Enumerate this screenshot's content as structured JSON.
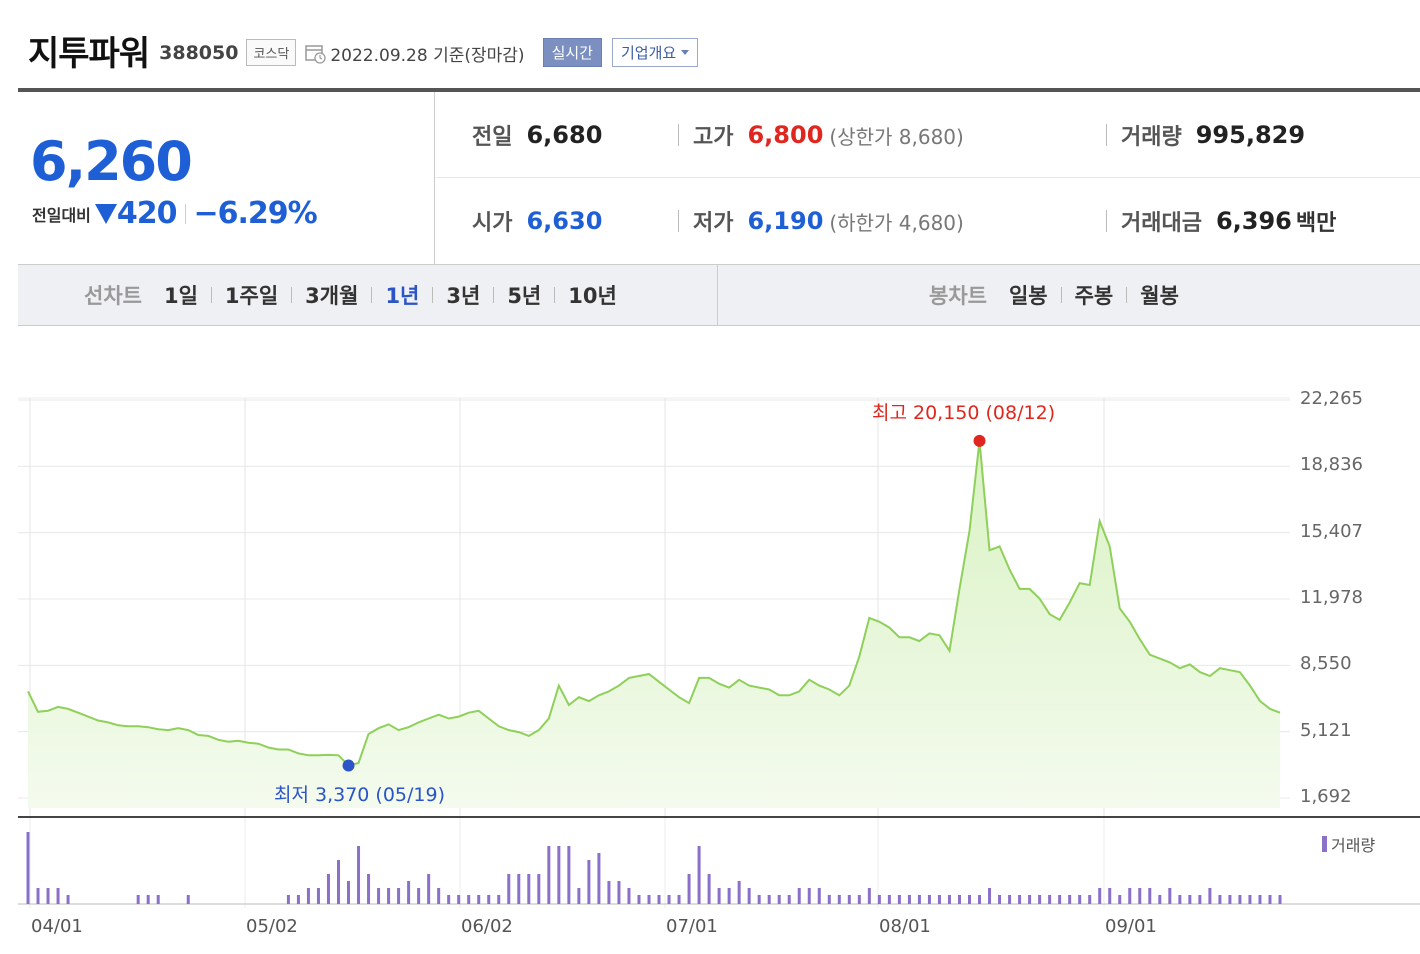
{
  "header": {
    "name": "지투파워",
    "code": "388050",
    "market": "코스닥",
    "date": "2022.09.28 기준(장마감)",
    "realtime_label": "실시간",
    "company_label": "기업개요"
  },
  "quote": {
    "price": "6,260",
    "change_label": "전일대비",
    "change_amount": "420",
    "change_pct": "−6.29%",
    "prev_label": "전일",
    "prev": "6,680",
    "high_label": "고가",
    "high": "6,800",
    "upper_limit": "(상한가 8,680)",
    "volume_label": "거래량",
    "volume": "995,829",
    "open_label": "시가",
    "open": "6,630",
    "low_label": "저가",
    "low": "6,190",
    "lower_limit": "(하한가 4,680)",
    "value_label": "거래대금",
    "value": "6,396",
    "value_unit": "백만"
  },
  "tabs": {
    "line_title": "선차트",
    "line": [
      "1일",
      "1주일",
      "3개월",
      "1년",
      "3년",
      "5년",
      "10년"
    ],
    "active": "1년",
    "candle_title": "봉차트",
    "candle": [
      "일봉",
      "주봉",
      "월봉"
    ]
  },
  "chart_data": {
    "type": "area",
    "y_ticks": [
      "22,265",
      "18,836",
      "15,407",
      "11,978",
      "8,550",
      "5,121",
      "1,692"
    ],
    "ylim": [
      1692,
      22265
    ],
    "x_ticks": [
      "04/01",
      "05/02",
      "06/02",
      "07/01",
      "08/01",
      "09/01"
    ],
    "max_annotation": "최고 20,150 (08/12)",
    "min_annotation": "최저 3,370 (05/19)",
    "volume_legend": "거래량",
    "colors": {
      "line": "#8ed05a",
      "fill_top": "#d9f2c3",
      "fill_bottom": "#f4fbee",
      "volume": "#8a70c8",
      "max": "#e0271f",
      "min": "#2a54c8"
    },
    "prices": [
      7200,
      6150,
      6200,
      6400,
      6300,
      6100,
      5900,
      5700,
      5600,
      5450,
      5400,
      5400,
      5350,
      5250,
      5200,
      5300,
      5200,
      4950,
      4900,
      4700,
      4600,
      4650,
      4550,
      4500,
      4300,
      4200,
      4200,
      4000,
      3900,
      3900,
      3920,
      3900,
      3370,
      3500,
      5000,
      5300,
      5500,
      5200,
      5350,
      5600,
      5800,
      6000,
      5800,
      5900,
      6100,
      6200,
      5800,
      5400,
      5200,
      5100,
      4900,
      5200,
      5800,
      7500,
      6500,
      6900,
      6700,
      7000,
      7200,
      7500,
      7900,
      8000,
      8100,
      7700,
      7300,
      6900,
      6600,
      7900,
      7900,
      7600,
      7400,
      7800,
      7500,
      7400,
      7300,
      7000,
      7000,
      7200,
      7800,
      7500,
      7300,
      7000,
      7500,
      9000,
      11000,
      10800,
      10500,
      10000,
      10000,
      9800,
      10200,
      10100,
      9300,
      12500,
      15500,
      20150,
      14500,
      14700,
      13500,
      12500,
      12500,
      12000,
      11200,
      10900,
      11800,
      12800,
      12700,
      16000,
      14700,
      11500,
      10800,
      9900,
      9100,
      8900,
      8700,
      8400,
      8600,
      8200,
      8000,
      8400,
      8300,
      8200,
      7500,
      6700,
      6300,
      6100
    ],
    "volumes": [
      10,
      2,
      2,
      2,
      1,
      0,
      0,
      0,
      0,
      0,
      0,
      1,
      1,
      1,
      0,
      0,
      1,
      0,
      0,
      0,
      0,
      0,
      0,
      0,
      0,
      0,
      1,
      1,
      2,
      2,
      4,
      6,
      3,
      8,
      4,
      2,
      2,
      2,
      3,
      2,
      4,
      2,
      1,
      1,
      1,
      1,
      1,
      1,
      4,
      4,
      4,
      4,
      8,
      8,
      8,
      2,
      6,
      7,
      3,
      3,
      2,
      1,
      1,
      1,
      1,
      1,
      4,
      8,
      4,
      2,
      2,
      3,
      2,
      1,
      1,
      1,
      1,
      2,
      2,
      2,
      1,
      1,
      1,
      1,
      2,
      1,
      1,
      1,
      1,
      1,
      1,
      1,
      1,
      1,
      1,
      1,
      2,
      1,
      1,
      1,
      1,
      1,
      1,
      1,
      1,
      1,
      1,
      2,
      2,
      1,
      2,
      2,
      2,
      1,
      2,
      1,
      1,
      1,
      2,
      1,
      1,
      1,
      1,
      1,
      1,
      1
    ],
    "volume_bars": [
      [
        27,
        52
      ],
      [
        36,
        14
      ],
      [
        44,
        18
      ],
      [
        52,
        14
      ],
      [
        60,
        18
      ],
      [
        68,
        10
      ],
      [
        76,
        4
      ],
      [
        84,
        4
      ],
      [
        92,
        4
      ],
      [
        100,
        4
      ],
      [
        108,
        4
      ],
      [
        116,
        4
      ],
      [
        124,
        4
      ],
      [
        148,
        4
      ],
      [
        156,
        4
      ],
      [
        164,
        4
      ],
      [
        172,
        10
      ],
      [
        244,
        8
      ],
      [
        252,
        4
      ],
      [
        260,
        4
      ],
      [
        276,
        4
      ],
      [
        284,
        4
      ],
      [
        300,
        4
      ],
      [
        308,
        4
      ],
      [
        316,
        4
      ],
      [
        340,
        4
      ],
      [
        348,
        4
      ],
      [
        356,
        4
      ],
      [
        364,
        10
      ],
      [
        372,
        25
      ],
      [
        380,
        18
      ],
      [
        386,
        52
      ],
      [
        394,
        12
      ],
      [
        402,
        16
      ],
      [
        410,
        20
      ],
      [
        418,
        18
      ],
      [
        426,
        16
      ],
      [
        434,
        20
      ],
      [
        442,
        10
      ],
      [
        450,
        4
      ],
      [
        458,
        4
      ],
      [
        466,
        20
      ],
      [
        474,
        4
      ],
      [
        482,
        8
      ],
      [
        490,
        4
      ],
      [
        498,
        4
      ],
      [
        506,
        4
      ],
      [
        514,
        4
      ],
      [
        522,
        6
      ],
      [
        530,
        6
      ],
      [
        538,
        46
      ],
      [
        546,
        50
      ],
      [
        554,
        48
      ],
      [
        562,
        44
      ],
      [
        570,
        24
      ],
      [
        578,
        14
      ],
      [
        586,
        6
      ],
      [
        594,
        74
      ],
      [
        602,
        66
      ],
      [
        608,
        26
      ],
      [
        616,
        30
      ],
      [
        624,
        22
      ],
      [
        632,
        12
      ],
      [
        640,
        8
      ],
      [
        648,
        6
      ],
      [
        656,
        6
      ],
      [
        664,
        6
      ],
      [
        672,
        6
      ],
      [
        680,
        16
      ],
      [
        688,
        10
      ],
      [
        694,
        62
      ],
      [
        702,
        28
      ],
      [
        710,
        10
      ],
      [
        718,
        8
      ],
      [
        726,
        10
      ],
      [
        734,
        16
      ],
      [
        742,
        20
      ],
      [
        750,
        10
      ],
      [
        758,
        8
      ],
      [
        766,
        6
      ],
      [
        774,
        6
      ],
      [
        782,
        6
      ],
      [
        790,
        8
      ],
      [
        798,
        18
      ],
      [
        806,
        22
      ],
      [
        814,
        10
      ],
      [
        822,
        6
      ],
      [
        830,
        4
      ],
      [
        838,
        10
      ],
      [
        844,
        10
      ],
      [
        852,
        6
      ],
      [
        858,
        54
      ],
      [
        866,
        10
      ],
      [
        874,
        8
      ],
      [
        882,
        6
      ],
      [
        890,
        4
      ],
      [
        898,
        4
      ],
      [
        906,
        4
      ],
      [
        914,
        6
      ],
      [
        920,
        18
      ],
      [
        928,
        10
      ],
      [
        936,
        10
      ],
      [
        944,
        6
      ],
      [
        952,
        4
      ],
      [
        960,
        4
      ],
      [
        968,
        6
      ],
      [
        976,
        6
      ],
      [
        984,
        4
      ],
      [
        992,
        4
      ],
      [
        1000,
        4
      ],
      [
        1040,
        4
      ],
      [
        1048,
        6
      ],
      [
        1056,
        4
      ],
      [
        1064,
        6
      ],
      [
        1072,
        6
      ],
      [
        1080,
        6
      ],
      [
        1088,
        8
      ],
      [
        1096,
        14
      ],
      [
        1104,
        4
      ],
      [
        1112,
        24
      ],
      [
        1120,
        12
      ],
      [
        1128,
        8
      ],
      [
        1136,
        12
      ],
      [
        1144,
        6
      ],
      [
        1152,
        6
      ],
      [
        1160,
        8
      ],
      [
        1168,
        6
      ],
      [
        1176,
        6
      ],
      [
        1184,
        18
      ],
      [
        1192,
        6
      ],
      [
        1200,
        6
      ],
      [
        1208,
        10
      ],
      [
        1216,
        8
      ],
      [
        1224,
        6
      ],
      [
        1232,
        4
      ],
      [
        1240,
        4
      ],
      [
        1248,
        4
      ],
      [
        1256,
        4
      ],
      [
        1264,
        4
      ],
      [
        1272,
        4
      ]
    ]
  }
}
